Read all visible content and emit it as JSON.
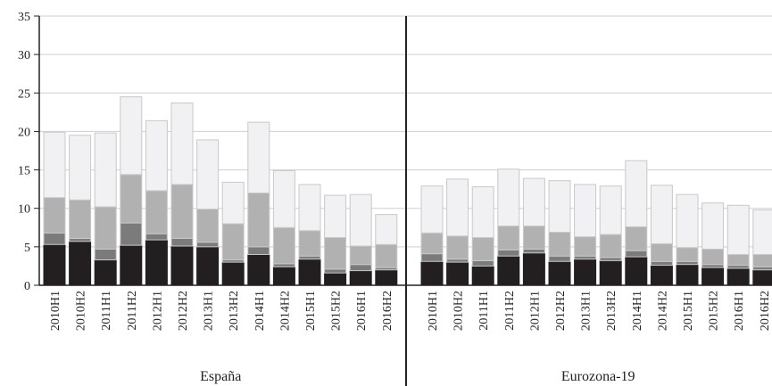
{
  "chart_data": {
    "type": "bar",
    "stacked": true,
    "ylim": [
      0,
      35
    ],
    "yticks": [
      0,
      5,
      10,
      15,
      20,
      25,
      30,
      35
    ],
    "grid": "horizontal",
    "colors": {
      "s1": "#231f20",
      "s2": "#7b7b7b",
      "s3": "#b1b1b1",
      "s4": "#f1f1f3",
      "stroke": "#c9c9c9",
      "axis": "#222222",
      "grid": "#cfcfcf"
    },
    "panels": [
      {
        "label": "España",
        "categories": [
          "2010H1",
          "2010H2",
          "2011H1",
          "2011H2",
          "2012H1",
          "2012H2",
          "2013H1",
          "2013H2",
          "2014H1",
          "2014H2",
          "2015H1",
          "2015H2",
          "2016H1",
          "2016H2"
        ],
        "series": [
          {
            "values": [
              5.3,
              5.7,
              3.3,
              5.2,
              5.9,
              5.1,
              5.0,
              3.0,
              4.0,
              2.4,
              3.4,
              1.6,
              1.9,
              2.0
            ]
          },
          {
            "values": [
              1.5,
              0.4,
              1.4,
              2.9,
              0.8,
              1.0,
              0.6,
              0.3,
              1.0,
              0.4,
              0.4,
              0.5,
              0.8,
              0.3
            ]
          },
          {
            "values": [
              4.6,
              5.0,
              5.5,
              6.3,
              5.6,
              7.0,
              4.3,
              4.7,
              7.0,
              4.7,
              3.3,
              4.1,
              2.4,
              3.0
            ]
          },
          {
            "values": [
              8.5,
              8.4,
              9.6,
              10.1,
              9.1,
              10.6,
              9.0,
              5.4,
              9.2,
              7.4,
              6.0,
              5.5,
              6.7,
              3.9
            ]
          }
        ]
      },
      {
        "label": "Eurozona-19",
        "categories": [
          "2010H1",
          "2010H2",
          "2011H1",
          "2011H2",
          "2012H1",
          "2012H2",
          "2013H1",
          "2013H2",
          "2014H1",
          "2014H2",
          "2015H1",
          "2015H2",
          "2016H1",
          "2016H2"
        ],
        "series": [
          {
            "values": [
              3.1,
              3.0,
              2.5,
              3.8,
              4.2,
              3.1,
              3.4,
              3.2,
              3.7,
              2.6,
              2.7,
              2.3,
              2.2,
              2.0
            ]
          },
          {
            "values": [
              1.0,
              0.4,
              0.7,
              0.8,
              0.5,
              0.7,
              0.4,
              0.4,
              0.8,
              0.5,
              0.4,
              0.4,
              0.4,
              0.4
            ]
          },
          {
            "values": [
              2.7,
              3.0,
              3.0,
              3.1,
              3.0,
              3.1,
              2.5,
              3.0,
              3.1,
              2.3,
              1.8,
              2.0,
              1.4,
              1.6
            ]
          },
          {
            "values": [
              6.1,
              7.4,
              6.6,
              7.4,
              6.2,
              6.7,
              6.8,
              6.3,
              8.6,
              7.6,
              6.9,
              6.0,
              6.4,
              5.8
            ]
          }
        ]
      }
    ]
  }
}
